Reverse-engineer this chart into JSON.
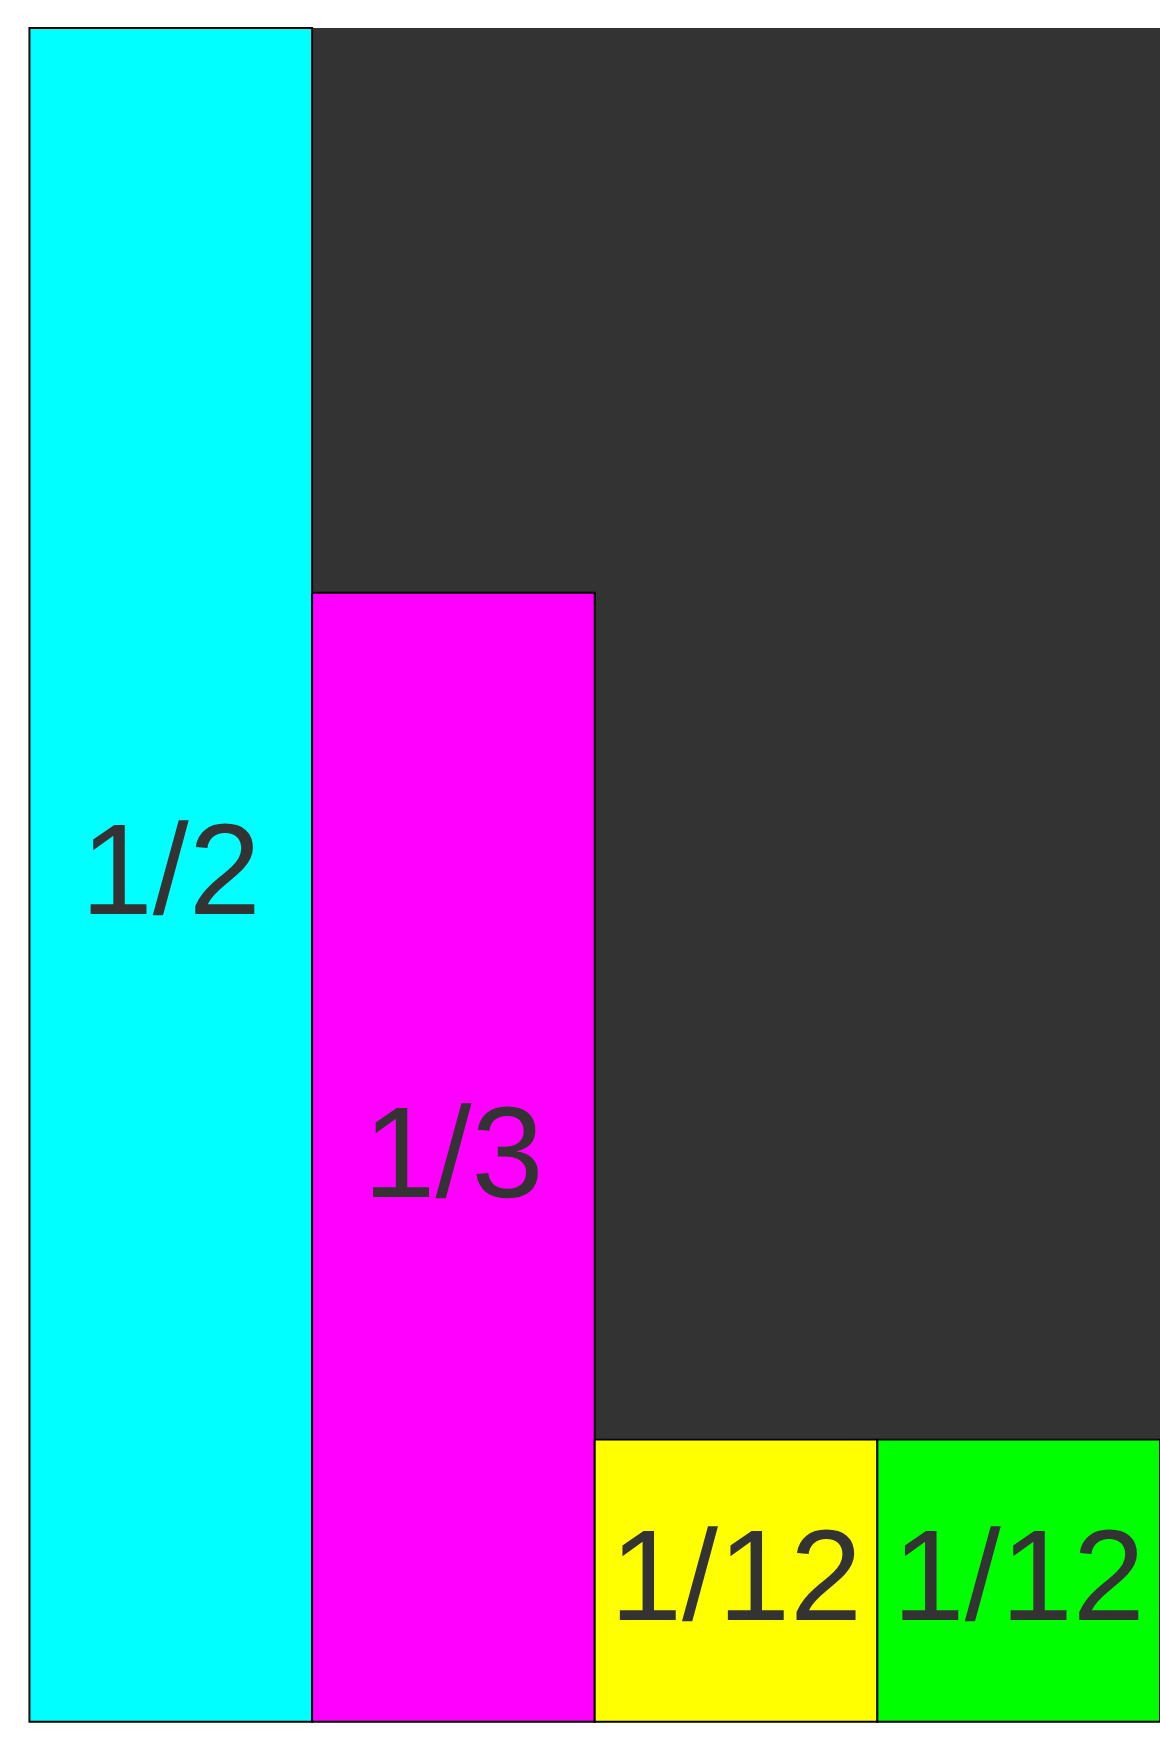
{
  "chart_data": {
    "type": "bar",
    "categories": [
      null,
      null,
      null,
      null
    ],
    "values": [
      0.5,
      0.3333,
      0.0833,
      0.0833
    ],
    "colors": [
      "#00ffff",
      "#ff00ff",
      "#ffff00",
      "#00ff00"
    ],
    "value_labels": [
      "1/2",
      "1/3",
      "1/12",
      "1/12"
    ],
    "ylim": [
      0,
      0.5
    ],
    "tick_labels": false,
    "grid": false
  }
}
